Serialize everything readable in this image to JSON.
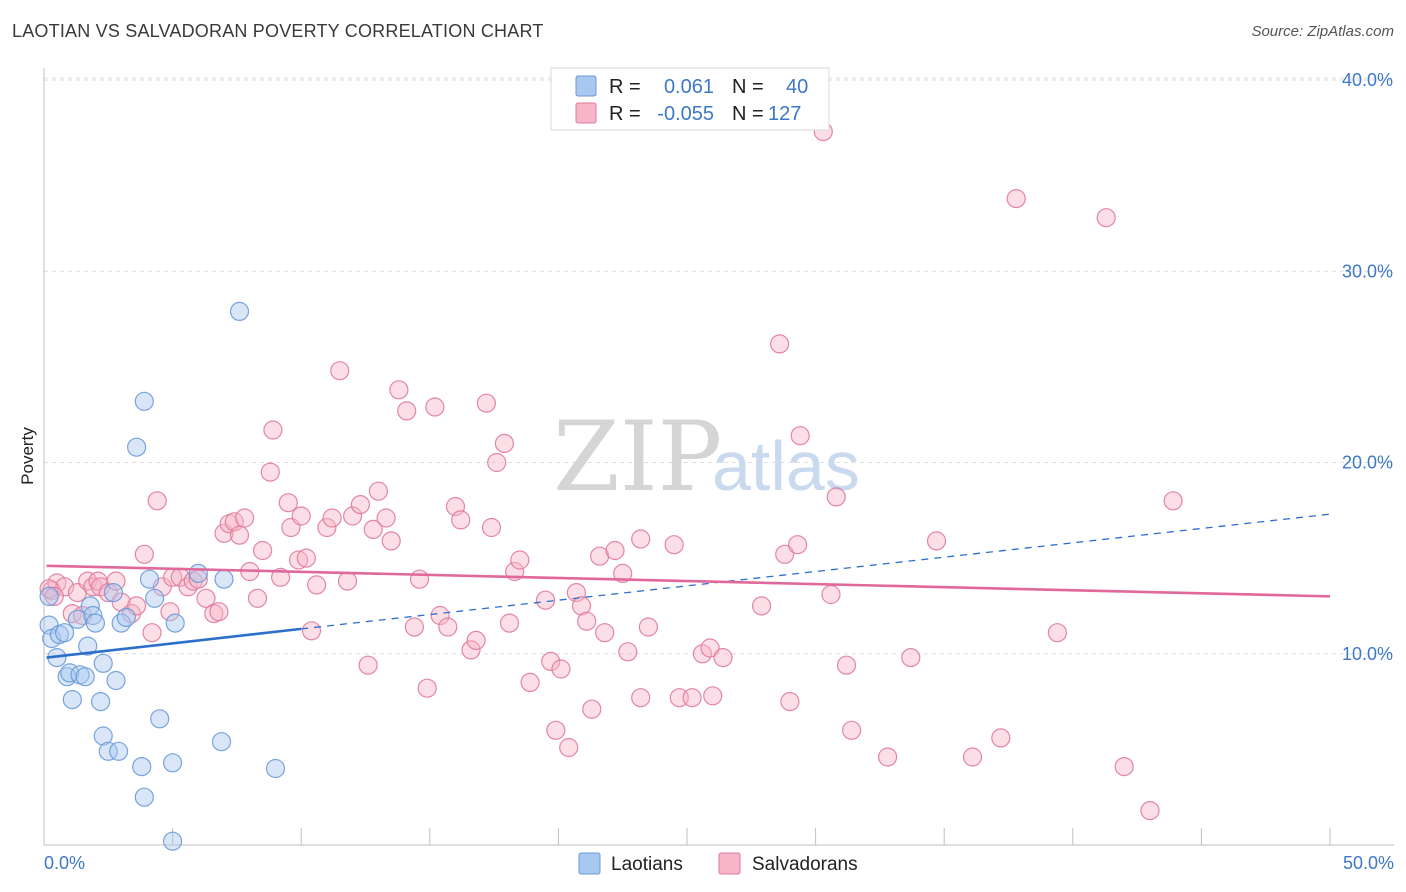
{
  "header": {
    "title": "LAOTIAN VS SALVADORAN POVERTY CORRELATION CHART",
    "source": "Source: ZipAtlas.com"
  },
  "watermark": {
    "zip": "ZIP",
    "atlas": "atlas"
  },
  "legend": {
    "rows": [
      {
        "r_label": "R =",
        "r_value": "0.061",
        "n_label": "N =",
        "n_value": "40",
        "color": "#a9c8f0",
        "stroke": "#6b9ad8"
      },
      {
        "r_label": "R =",
        "r_value": "-0.055",
        "n_label": "N =",
        "n_value": "127",
        "color": "#f7b6c8",
        "stroke": "#e07a9c"
      }
    ]
  },
  "bottom_legend": [
    {
      "label": "Laotians",
      "color": "#a9c8f0",
      "stroke": "#6b9ad8"
    },
    {
      "label": "Salvadorans",
      "color": "#f7b6c8",
      "stroke": "#e07a9c"
    }
  ],
  "chart_data": {
    "type": "scatter",
    "title": "LAOTIAN VS SALVADORAN POVERTY CORRELATION CHART",
    "xlabel": "",
    "ylabel": "Poverty",
    "xlim": [
      0,
      50
    ],
    "ylim": [
      0,
      40
    ],
    "x_tick_labels": [
      "0.0%",
      "50.0%"
    ],
    "y_ticks": [
      10,
      20,
      30,
      40
    ],
    "y_tick_labels": [
      "10.0%",
      "20.0%",
      "30.0%",
      "40.0%"
    ],
    "grid": true,
    "series": [
      {
        "name": "Laotians",
        "color": "#6b9ad8",
        "fill": "#a9c8f0",
        "trend": {
          "solid": [
            [
              0.1,
              9.8
            ],
            [
              10,
              11.3
            ]
          ],
          "dashed": [
            [
              10,
              11.3
            ],
            [
              50,
              17.3
            ]
          ],
          "color": "#2c6fcb"
        },
        "points": [
          [
            0.2,
            11.5
          ],
          [
            0.3,
            10.8
          ],
          [
            0.5,
            9.8
          ],
          [
            0.6,
            11.0
          ],
          [
            0.8,
            11.1
          ],
          [
            0.9,
            8.8
          ],
          [
            1.0,
            9.0
          ],
          [
            1.1,
            7.6
          ],
          [
            1.3,
            11.8
          ],
          [
            1.4,
            8.9
          ],
          [
            1.6,
            8.8
          ],
          [
            1.7,
            10.4
          ],
          [
            1.8,
            12.5
          ],
          [
            1.9,
            12.0
          ],
          [
            2.0,
            11.6
          ],
          [
            2.2,
            7.5
          ],
          [
            2.3,
            9.5
          ],
          [
            2.3,
            5.7
          ],
          [
            2.5,
            4.9
          ],
          [
            2.7,
            13.2
          ],
          [
            2.8,
            8.6
          ],
          [
            2.9,
            4.9
          ],
          [
            3.0,
            11.6
          ],
          [
            3.2,
            11.9
          ],
          [
            3.6,
            20.8
          ],
          [
            3.8,
            4.1
          ],
          [
            3.9,
            23.2
          ],
          [
            4.1,
            13.9
          ],
          [
            4.3,
            12.9
          ],
          [
            4.5,
            6.6
          ],
          [
            5.0,
            4.3
          ],
          [
            5.1,
            11.6
          ],
          [
            3.9,
            2.5
          ],
          [
            5.0,
            0.2
          ],
          [
            6.0,
            14.2
          ],
          [
            6.9,
            5.4
          ],
          [
            7.0,
            13.9
          ],
          [
            7.6,
            27.9
          ],
          [
            9.0,
            4.0
          ],
          [
            0.2,
            13.0
          ]
        ]
      },
      {
        "name": "Salvadorans",
        "color": "#e07a9c",
        "fill": "#f7b6c8",
        "trend": {
          "solid": [
            [
              0.1,
              14.6
            ],
            [
              50,
              13.0
            ]
          ],
          "color": "#e0689a"
        },
        "points": [
          [
            0.3,
            13.3
          ],
          [
            0.5,
            13.7
          ],
          [
            0.8,
            13.5
          ],
          [
            1.1,
            12.1
          ],
          [
            1.3,
            13.2
          ],
          [
            1.5,
            12.0
          ],
          [
            1.7,
            13.8
          ],
          [
            1.9,
            13.5
          ],
          [
            2.1,
            13.8
          ],
          [
            2.2,
            13.5
          ],
          [
            2.5,
            13.2
          ],
          [
            2.8,
            13.8
          ],
          [
            3.0,
            12.7
          ],
          [
            3.4,
            12.1
          ],
          [
            3.6,
            12.5
          ],
          [
            3.9,
            15.2
          ],
          [
            4.2,
            11.1
          ],
          [
            4.4,
            18.0
          ],
          [
            4.6,
            13.5
          ],
          [
            4.9,
            12.2
          ],
          [
            5.0,
            14.0
          ],
          [
            5.3,
            14.0
          ],
          [
            5.6,
            13.5
          ],
          [
            5.8,
            13.8
          ],
          [
            6.0,
            13.9
          ],
          [
            6.3,
            12.9
          ],
          [
            6.6,
            12.1
          ],
          [
            6.8,
            12.2
          ],
          [
            7.0,
            16.3
          ],
          [
            7.2,
            16.8
          ],
          [
            7.4,
            16.9
          ],
          [
            7.6,
            16.2
          ],
          [
            7.8,
            17.1
          ],
          [
            8.0,
            14.3
          ],
          [
            8.3,
            12.9
          ],
          [
            8.5,
            15.4
          ],
          [
            8.8,
            19.5
          ],
          [
            8.9,
            21.7
          ],
          [
            9.2,
            14.0
          ],
          [
            9.5,
            17.9
          ],
          [
            9.6,
            16.6
          ],
          [
            9.9,
            14.9
          ],
          [
            10.0,
            17.2
          ],
          [
            10.2,
            15.0
          ],
          [
            10.4,
            11.2
          ],
          [
            10.6,
            13.6
          ],
          [
            11.0,
            16.6
          ],
          [
            11.2,
            17.1
          ],
          [
            11.5,
            24.8
          ],
          [
            11.8,
            13.8
          ],
          [
            12.0,
            17.2
          ],
          [
            12.3,
            17.8
          ],
          [
            12.6,
            9.4
          ],
          [
            12.8,
            16.5
          ],
          [
            13.0,
            18.5
          ],
          [
            13.3,
            17.1
          ],
          [
            13.5,
            15.9
          ],
          [
            13.8,
            23.8
          ],
          [
            14.1,
            22.7
          ],
          [
            14.4,
            11.4
          ],
          [
            14.6,
            13.9
          ],
          [
            14.9,
            8.2
          ],
          [
            15.2,
            22.9
          ],
          [
            15.4,
            12.0
          ],
          [
            15.7,
            11.4
          ],
          [
            16.0,
            17.7
          ],
          [
            16.2,
            17.0
          ],
          [
            16.6,
            10.2
          ],
          [
            16.8,
            10.7
          ],
          [
            17.2,
            23.1
          ],
          [
            17.4,
            16.6
          ],
          [
            17.6,
            20.0
          ],
          [
            17.9,
            21.0
          ],
          [
            18.1,
            11.6
          ],
          [
            18.3,
            14.3
          ],
          [
            18.5,
            14.9
          ],
          [
            18.9,
            8.5
          ],
          [
            19.5,
            12.8
          ],
          [
            19.7,
            9.6
          ],
          [
            19.9,
            6.0
          ],
          [
            20.1,
            9.2
          ],
          [
            20.4,
            5.1
          ],
          [
            20.7,
            13.2
          ],
          [
            20.9,
            12.5
          ],
          [
            21.1,
            11.7
          ],
          [
            21.3,
            7.1
          ],
          [
            21.6,
            15.1
          ],
          [
            21.8,
            11.1
          ],
          [
            22.2,
            15.4
          ],
          [
            22.5,
            14.2
          ],
          [
            22.7,
            10.1
          ],
          [
            23.2,
            16.0
          ],
          [
            23.2,
            7.7
          ],
          [
            23.5,
            11.4
          ],
          [
            24.5,
            15.7
          ],
          [
            24.7,
            7.7
          ],
          [
            25.2,
            7.7
          ],
          [
            25.6,
            10.0
          ],
          [
            25.9,
            10.3
          ],
          [
            26.0,
            7.8
          ],
          [
            26.4,
            9.8
          ],
          [
            27.9,
            12.5
          ],
          [
            28.6,
            26.2
          ],
          [
            28.8,
            15.2
          ],
          [
            29.0,
            7.5
          ],
          [
            29.3,
            15.7
          ],
          [
            29.4,
            21.4
          ],
          [
            30.6,
            13.1
          ],
          [
            30.8,
            18.2
          ],
          [
            31.2,
            9.4
          ],
          [
            31.4,
            6.0
          ],
          [
            32.8,
            4.6
          ],
          [
            33.7,
            9.8
          ],
          [
            30.3,
            37.3
          ],
          [
            34.7,
            15.9
          ],
          [
            36.1,
            4.6
          ],
          [
            37.8,
            33.8
          ],
          [
            37.2,
            5.6
          ],
          [
            39.4,
            11.1
          ],
          [
            41.3,
            32.8
          ],
          [
            42.0,
            4.1
          ],
          [
            43.9,
            18.0
          ],
          [
            43.0,
            1.8
          ],
          [
            0.2,
            13.4
          ],
          [
            0.4,
            13.0
          ]
        ]
      }
    ]
  }
}
